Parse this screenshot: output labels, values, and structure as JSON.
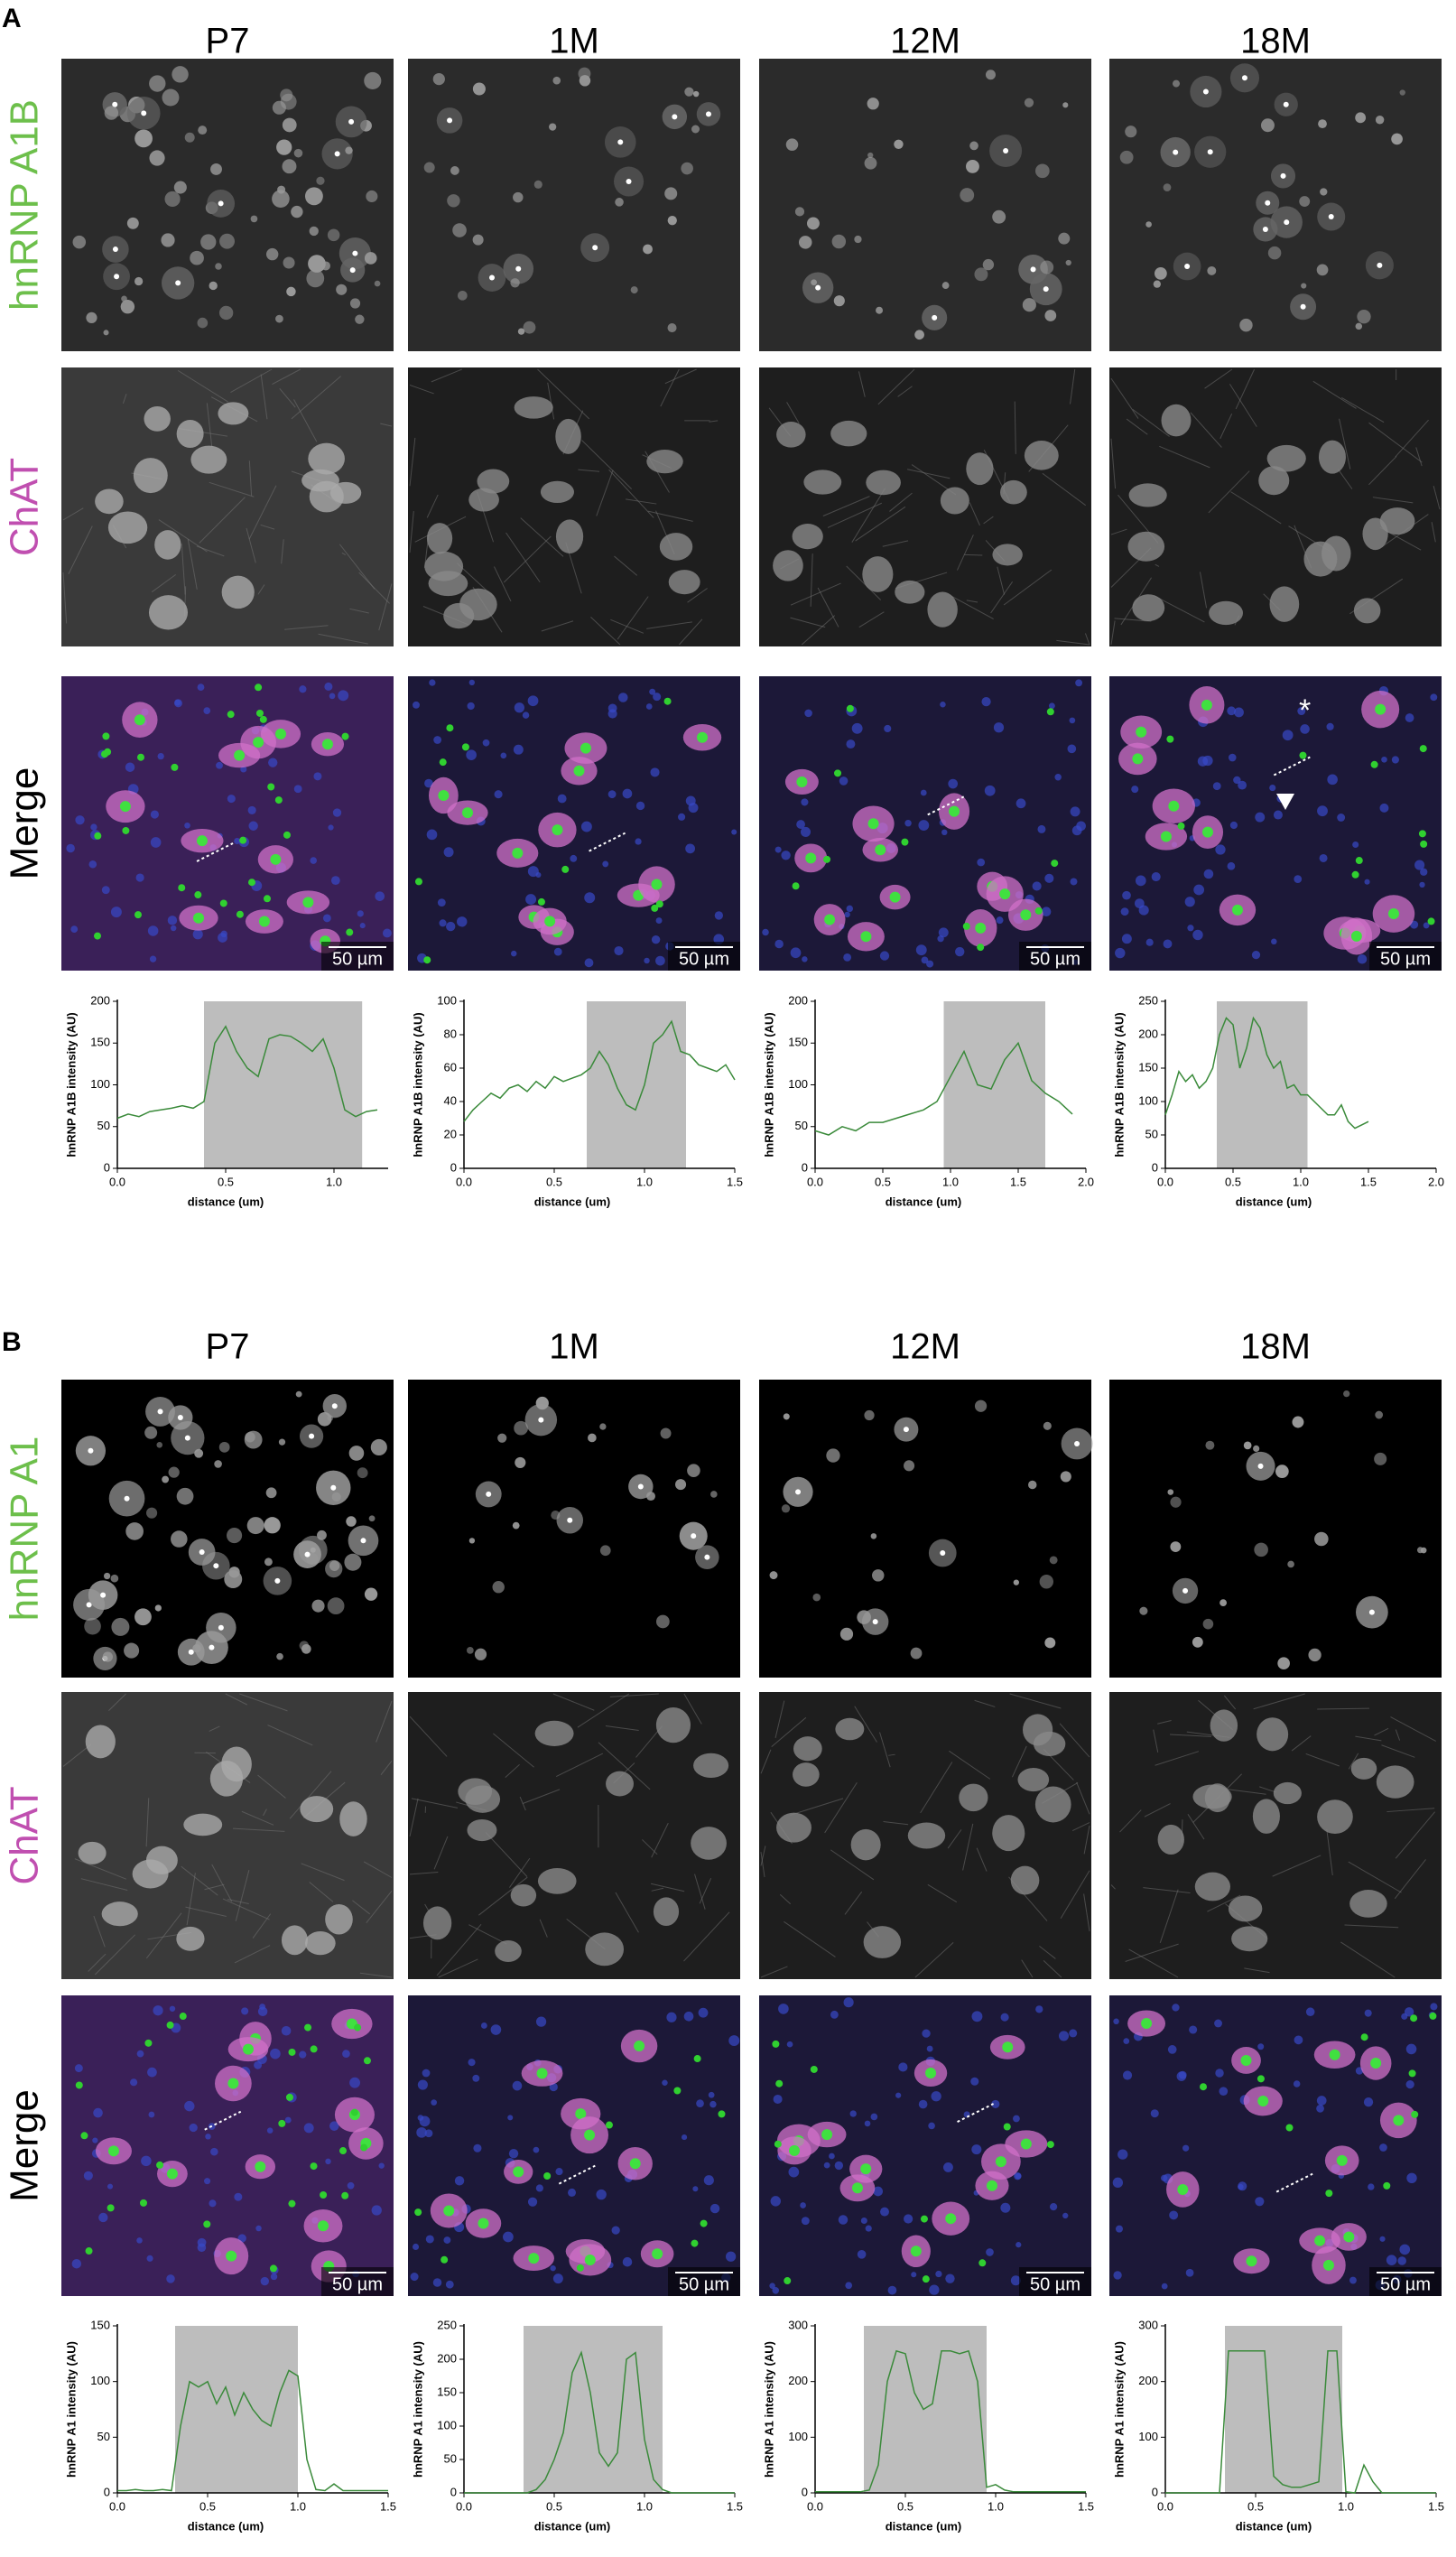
{
  "figure": {
    "panels": [
      {
        "label": "A",
        "columns": [
          "P7",
          "1M",
          "12M",
          "18M"
        ],
        "rows": [
          "hnRNP A1B",
          "ChAT",
          "Merge"
        ]
      },
      {
        "label": "B",
        "columns": [
          "P7",
          "1M",
          "12M",
          "18M"
        ],
        "rows": [
          "hnRNP A1",
          "ChAT",
          "Merge"
        ]
      }
    ],
    "scale_bar": "50 µm",
    "asterisk": "*"
  },
  "chart_data": [
    {
      "type": "line",
      "ylabel": "hnRNP A1B intensity (AU)",
      "xlabel": "distance (um)",
      "color": "#3a8a3a",
      "xlim": [
        0,
        1.25
      ],
      "xticks": [
        {
          "value": 0,
          "label": "0.0"
        },
        0.5,
        {
          "value": 1,
          "label": "1.0"
        }
      ],
      "ylim": [
        0,
        200
      ],
      "yticks": [
        0,
        50,
        100,
        150,
        200
      ],
      "shade": [
        0.4,
        1.13
      ],
      "x": [
        0,
        0.05,
        0.1,
        0.15,
        0.2,
        0.25,
        0.3,
        0.35,
        0.4,
        0.45,
        0.5,
        0.55,
        0.6,
        0.65,
        0.7,
        0.75,
        0.8,
        0.85,
        0.9,
        0.95,
        1,
        1.05,
        1.1,
        1.15,
        1.2
      ],
      "values": [
        60,
        65,
        62,
        68,
        70,
        72,
        75,
        72,
        80,
        150,
        170,
        140,
        120,
        110,
        155,
        160,
        158,
        150,
        140,
        155,
        120,
        70,
        62,
        68,
        70
      ]
    },
    {
      "type": "line",
      "ylabel": "hnRNP A1B intensity (AU)",
      "xlabel": "distance (um)",
      "color": "#3a8a3a",
      "xlim": [
        0,
        1.5
      ],
      "xticks": [
        {
          "value": 0,
          "label": "0.0"
        },
        0.5,
        {
          "value": 1,
          "label": "1.0"
        },
        1.5
      ],
      "ylim": [
        0,
        100
      ],
      "yticks": [
        0,
        20,
        40,
        60,
        80,
        100
      ],
      "shade": [
        0.68,
        1.23
      ],
      "x": [
        0,
        0.05,
        0.1,
        0.15,
        0.2,
        0.25,
        0.3,
        0.35,
        0.4,
        0.45,
        0.5,
        0.55,
        0.6,
        0.65,
        0.7,
        0.75,
        0.8,
        0.85,
        0.9,
        0.95,
        1,
        1.05,
        1.1,
        1.15,
        1.2,
        1.25,
        1.3,
        1.35,
        1.4,
        1.45,
        1.5
      ],
      "values": [
        28,
        35,
        40,
        45,
        42,
        48,
        50,
        46,
        52,
        48,
        55,
        52,
        54,
        56,
        60,
        70,
        62,
        48,
        38,
        35,
        50,
        75,
        80,
        88,
        70,
        68,
        62,
        60,
        58,
        62,
        53
      ]
    },
    {
      "type": "line",
      "ylabel": "hnRNP A1B intensity (AU)",
      "xlabel": "distance (um)",
      "color": "#3a8a3a",
      "xlim": [
        0,
        2
      ],
      "xticks": [
        {
          "value": 0,
          "label": "0.0"
        },
        0.5,
        {
          "value": 1,
          "label": "1.0"
        },
        1.5,
        {
          "value": 2,
          "label": "2.0"
        }
      ],
      "ylim": [
        0,
        200
      ],
      "yticks": [
        0,
        50,
        100,
        150,
        200
      ],
      "shade": [
        0.95,
        1.7
      ],
      "x": [
        0,
        0.1,
        0.2,
        0.3,
        0.4,
        0.5,
        0.6,
        0.7,
        0.8,
        0.9,
        1,
        1.1,
        1.2,
        1.3,
        1.4,
        1.5,
        1.6,
        1.7,
        1.8,
        1.9
      ],
      "values": [
        45,
        40,
        50,
        45,
        55,
        55,
        60,
        65,
        70,
        80,
        110,
        140,
        100,
        95,
        130,
        150,
        105,
        90,
        80,
        65
      ]
    },
    {
      "type": "line",
      "ylabel": "hnRNP A1B intensity (AU)",
      "xlabel": "distance (um)",
      "color": "#3a8a3a",
      "xlim": [
        0,
        2
      ],
      "xticks": [
        {
          "value": 0,
          "label": "0.0"
        },
        0.5,
        {
          "value": 1,
          "label": "1.0"
        },
        1.5,
        {
          "value": 2,
          "label": "2.0"
        }
      ],
      "ylim": [
        0,
        250
      ],
      "yticks": [
        0,
        50,
        100,
        150,
        200,
        250
      ],
      "shade": [
        0.38,
        1.05
      ],
      "x": [
        0,
        0.05,
        0.1,
        0.15,
        0.2,
        0.25,
        0.3,
        0.35,
        0.4,
        0.45,
        0.5,
        0.55,
        0.6,
        0.65,
        0.7,
        0.75,
        0.8,
        0.85,
        0.9,
        0.95,
        1,
        1.05,
        1.1,
        1.15,
        1.2,
        1.25,
        1.3,
        1.35,
        1.4,
        1.45,
        1.5
      ],
      "values": [
        80,
        110,
        145,
        130,
        140,
        120,
        130,
        150,
        200,
        225,
        215,
        150,
        180,
        225,
        210,
        170,
        150,
        160,
        120,
        125,
        110,
        110,
        100,
        90,
        80,
        80,
        95,
        70,
        60,
        65,
        70
      ]
    },
    {
      "type": "line",
      "ylabel": "hnRNP A1 intensity (AU)",
      "xlabel": "distance (um)",
      "color": "#3a8a3a",
      "xlim": [
        0,
        1.5
      ],
      "xticks": [
        {
          "value": 0,
          "label": "0.0"
        },
        0.5,
        {
          "value": 1,
          "label": "1.0"
        },
        1.5
      ],
      "ylim": [
        0,
        150
      ],
      "yticks": [
        0,
        50,
        100,
        150
      ],
      "shade": [
        0.32,
        1.0
      ],
      "x": [
        0,
        0.05,
        0.1,
        0.15,
        0.2,
        0.25,
        0.3,
        0.35,
        0.4,
        0.45,
        0.5,
        0.55,
        0.6,
        0.65,
        0.7,
        0.75,
        0.8,
        0.85,
        0.9,
        0.95,
        1,
        1.05,
        1.1,
        1.15,
        1.2,
        1.25,
        1.3,
        1.35,
        1.4,
        1.45,
        1.5
      ],
      "values": [
        2,
        2,
        3,
        2,
        2,
        3,
        2,
        60,
        100,
        95,
        100,
        80,
        95,
        70,
        90,
        75,
        65,
        60,
        90,
        110,
        105,
        30,
        3,
        2,
        8,
        2,
        2,
        2,
        2,
        2,
        2
      ]
    },
    {
      "type": "line",
      "ylabel": "hnRNP A1 intensity (AU)",
      "xlabel": "distance (um)",
      "color": "#3a8a3a",
      "xlim": [
        0,
        1.5
      ],
      "xticks": [
        {
          "value": 0,
          "label": "0.0"
        },
        0.5,
        {
          "value": 1,
          "label": "1.0"
        },
        1.5
      ],
      "ylim": [
        0,
        250
      ],
      "yticks": [
        0,
        50,
        100,
        150,
        200,
        250
      ],
      "shade": [
        0.33,
        1.1
      ],
      "x": [
        0,
        0.05,
        0.1,
        0.15,
        0.2,
        0.25,
        0.3,
        0.35,
        0.4,
        0.45,
        0.5,
        0.55,
        0.6,
        0.65,
        0.7,
        0.75,
        0.8,
        0.85,
        0.9,
        0.95,
        1,
        1.05,
        1.1,
        1.15,
        1.2,
        1.25,
        1.3,
        1.35,
        1.4,
        1.45,
        1.5
      ],
      "values": [
        0,
        0,
        0,
        0,
        0,
        0,
        0,
        0,
        5,
        20,
        50,
        90,
        180,
        210,
        150,
        60,
        40,
        60,
        200,
        210,
        80,
        20,
        5,
        0,
        0,
        0,
        0,
        0,
        0,
        0,
        0
      ]
    },
    {
      "type": "line",
      "ylabel": "hnRNP A1 intensity (AU)",
      "xlabel": "distance (um)",
      "color": "#3a8a3a",
      "xlim": [
        0,
        1.5
      ],
      "xticks": [
        {
          "value": 0,
          "label": "0.0"
        },
        0.5,
        {
          "value": 1,
          "label": "1.0"
        },
        1.5
      ],
      "ylim": [
        0,
        300
      ],
      "yticks": [
        0,
        100,
        200,
        300
      ],
      "shade": [
        0.27,
        0.95
      ],
      "x": [
        0,
        0.05,
        0.1,
        0.15,
        0.2,
        0.25,
        0.3,
        0.35,
        0.4,
        0.45,
        0.5,
        0.55,
        0.6,
        0.65,
        0.7,
        0.75,
        0.8,
        0.85,
        0.9,
        0.95,
        1,
        1.05,
        1.1,
        1.15,
        1.2,
        1.25,
        1.3,
        1.35,
        1.4,
        1.45,
        1.5
      ],
      "values": [
        2,
        2,
        2,
        2,
        2,
        2,
        5,
        50,
        200,
        255,
        250,
        180,
        150,
        160,
        255,
        255,
        250,
        255,
        200,
        10,
        15,
        5,
        2,
        2,
        2,
        2,
        2,
        2,
        2,
        2,
        2
      ]
    },
    {
      "type": "line",
      "ylabel": "hnRNP A1 intensity (AU)",
      "xlabel": "distance (um)",
      "color": "#3a8a3a",
      "xlim": [
        0,
        1.5
      ],
      "xticks": [
        {
          "value": 0,
          "label": "0.0"
        },
        0.5,
        {
          "value": 1,
          "label": "1.0"
        },
        1.5
      ],
      "ylim": [
        0,
        300
      ],
      "yticks": [
        0,
        100,
        200,
        300
      ],
      "shade": [
        0.33,
        0.98
      ],
      "x": [
        0,
        0.05,
        0.1,
        0.15,
        0.2,
        0.25,
        0.3,
        0.35,
        0.4,
        0.45,
        0.5,
        0.55,
        0.6,
        0.65,
        0.7,
        0.75,
        0.8,
        0.85,
        0.9,
        0.95,
        1,
        1.05,
        1.1,
        1.15,
        1.2,
        1.25,
        1.3,
        1.35,
        1.4,
        1.45,
        1.5
      ],
      "values": [
        0,
        0,
        0,
        0,
        0,
        0,
        0,
        255,
        255,
        255,
        255,
        255,
        30,
        15,
        10,
        10,
        15,
        20,
        255,
        255,
        2,
        0,
        50,
        20,
        0,
        0,
        0,
        0,
        0,
        0,
        0
      ]
    }
  ]
}
